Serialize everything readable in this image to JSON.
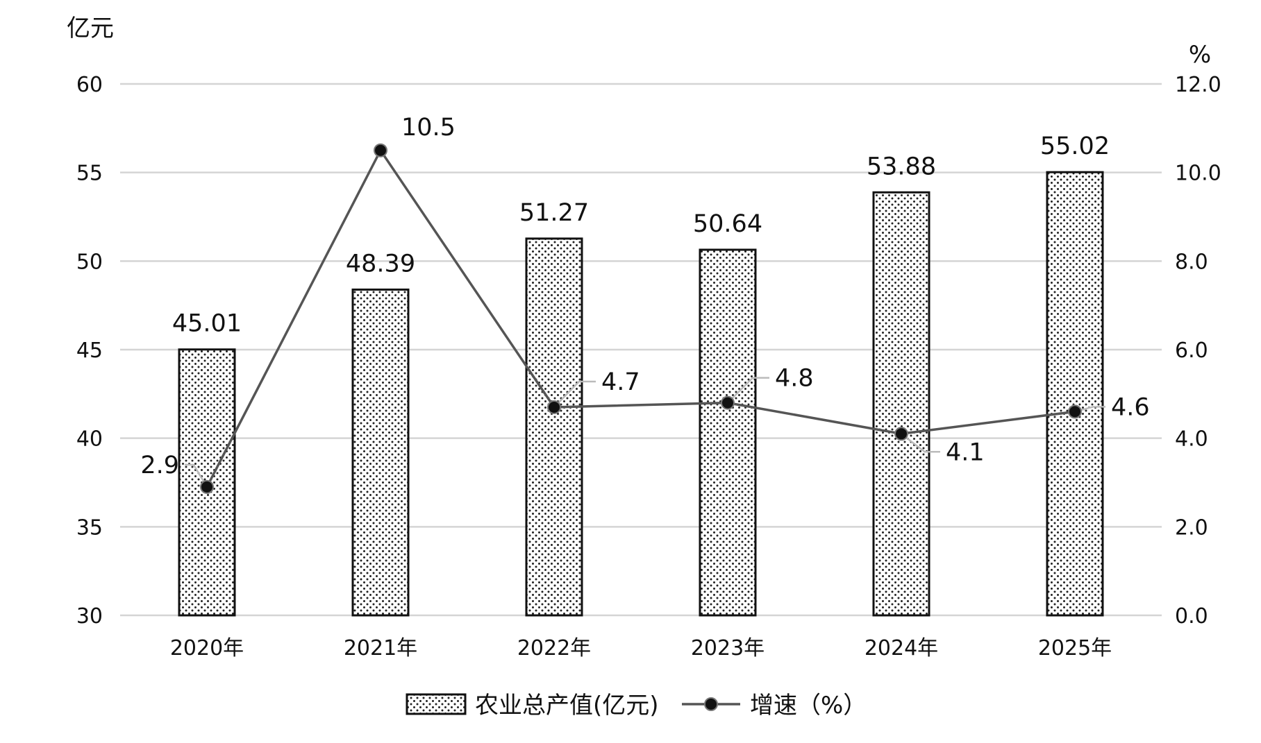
{
  "chart_data": {
    "type": "bar",
    "categories": [
      "2020年",
      "2021年",
      "2022年",
      "2023年",
      "2024年",
      "2025年"
    ],
    "series": [
      {
        "name": "农业总产值(亿元)",
        "type": "bar",
        "axis": "left",
        "values": [
          45.01,
          48.39,
          51.27,
          50.64,
          53.88,
          55.02
        ],
        "labels": [
          "45.01",
          "48.39",
          "51.27",
          "50.64",
          "53.88",
          "55.02"
        ]
      },
      {
        "name": "增速（%）",
        "type": "line",
        "axis": "right",
        "values": [
          2.9,
          10.5,
          4.7,
          4.8,
          4.1,
          4.6
        ],
        "labels": [
          "2.9",
          "10.5",
          "4.7",
          "4.8",
          "4.1",
          "4.6"
        ]
      }
    ],
    "left_axis": {
      "label": "亿元",
      "min": 30,
      "max": 60,
      "ticks": [
        "30",
        "35",
        "40",
        "45",
        "50",
        "55",
        "60"
      ]
    },
    "right_axis": {
      "label": "%",
      "min": 0,
      "max": 12,
      "ticks": [
        "0.0",
        "2.0",
        "4.0",
        "6.0",
        "8.0",
        "10.0",
        "12.0"
      ]
    },
    "grid": true,
    "legend_position": "bottom",
    "bar_fill": "dotted pattern",
    "colors": {
      "bar_outline": "#111111",
      "bar_dots": "#222222",
      "line": "#555555",
      "marker": "#111111",
      "grid": "#d4d4d4",
      "leader": "#bbbbbb"
    }
  }
}
